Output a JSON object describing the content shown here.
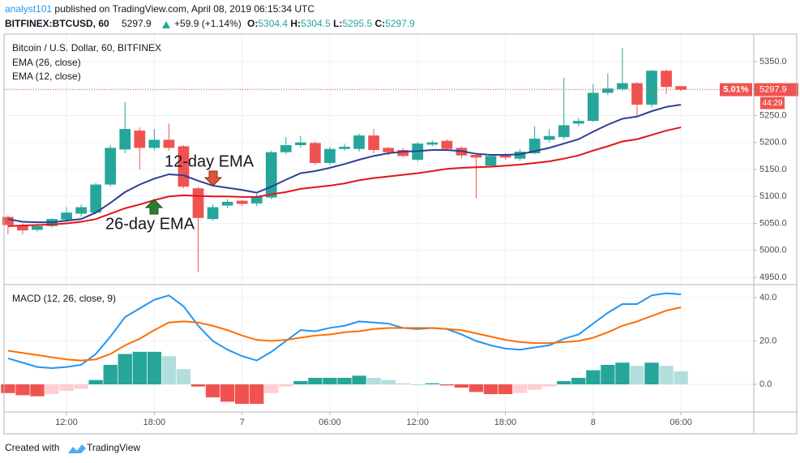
{
  "header": {
    "author": "analyst101",
    "published": "published on TradingView.com, April 08, 2019 06:15:34 UTC",
    "symbol": "BITFINEX:BTCUSD, 60",
    "price": "5297.9",
    "change": "+59.9 (+1.14%)",
    "o_label": "O:",
    "o_value": "5304.4",
    "h_label": "H:",
    "h_value": "5304.5",
    "l_label": "L:",
    "l_value": "5295.5",
    "c_label": "C:",
    "c_value": "5297.9"
  },
  "chart_data": [
    {
      "type": "candlestick",
      "title": "Bitcoin / U.S. Dollar, 60, BITFINEX",
      "x": [
        0,
        1,
        2,
        3,
        4,
        5,
        6,
        7,
        8,
        9,
        10,
        11,
        12,
        13,
        14,
        15,
        16,
        17,
        18,
        19,
        20,
        21,
        22,
        23,
        24,
        25,
        26,
        27,
        28,
        29,
        30,
        31,
        32,
        33,
        34,
        35,
        36,
        37,
        38,
        39,
        40,
        41,
        42,
        43,
        44,
        45,
        46
      ],
      "open": [
        5062,
        5047,
        5038,
        5045,
        5057,
        5068,
        5070,
        5122,
        5187,
        5222,
        5190,
        5205,
        5193,
        5115,
        5058,
        5083,
        5092,
        5087,
        5098,
        5182,
        5195,
        5199,
        5162,
        5188,
        5188,
        5213,
        5190,
        5186,
        5168,
        5196,
        5203,
        5190,
        5177,
        5157,
        5177,
        5170,
        5180,
        5205,
        5210,
        5235,
        5240,
        5292,
        5299,
        5310,
        5270,
        5333,
        5304.4
      ],
      "high": [
        5065,
        5050,
        5048,
        5060,
        5080,
        5085,
        5125,
        5195,
        5275,
        5228,
        5225,
        5235,
        5195,
        5118,
        5085,
        5095,
        5094,
        5105,
        5185,
        5210,
        5212,
        5202,
        5192,
        5198,
        5216,
        5225,
        5192,
        5190,
        5200,
        5204,
        5206,
        5193,
        5180,
        5178,
        5180,
        5188,
        5230,
        5225,
        5320,
        5245,
        5308,
        5328,
        5375,
        5312,
        5335,
        5335,
        5304.5
      ],
      "low": [
        5030,
        5030,
        5035,
        5042,
        5052,
        5062,
        5068,
        5118,
        5180,
        5150,
        5185,
        5185,
        5115,
        4960,
        5055,
        5078,
        5082,
        5082,
        5095,
        5178,
        5190,
        5158,
        5158,
        5185,
        5183,
        5180,
        5176,
        5172,
        5165,
        5193,
        5186,
        5170,
        5097,
        5154,
        5168,
        5166,
        5178,
        5200,
        5205,
        5230,
        5238,
        5288,
        5296,
        5250,
        5265,
        5290,
        5295.5
      ],
      "close": [
        5047,
        5037,
        5045,
        5058,
        5070,
        5080,
        5122,
        5190,
        5225,
        5190,
        5205,
        5190,
        5118,
        5060,
        5080,
        5090,
        5086,
        5100,
        5182,
        5195,
        5200,
        5162,
        5188,
        5192,
        5213,
        5186,
        5182,
        5175,
        5198,
        5200,
        5188,
        5176,
        5172,
        5175,
        5172,
        5183,
        5207,
        5212,
        5232,
        5240,
        5292,
        5300,
        5310,
        5270,
        5333,
        5303,
        5297.9
      ],
      "up_color": "#26a69a",
      "down_color": "#ef5350",
      "series": [
        {
          "name": "EMA (26, close)",
          "color": "#e3141b",
          "values": [
            5045,
            5046,
            5047,
            5048,
            5050,
            5053,
            5058,
            5068,
            5078,
            5085,
            5093,
            5100,
            5102,
            5101,
            5100,
            5100,
            5099,
            5099,
            5104,
            5108,
            5114,
            5117,
            5120,
            5124,
            5130,
            5134,
            5137,
            5140,
            5143,
            5147,
            5151,
            5153,
            5154,
            5155,
            5157,
            5159,
            5162,
            5165,
            5170,
            5176,
            5185,
            5193,
            5202,
            5206,
            5214,
            5222,
            5228
          ]
        },
        {
          "name": "EMA (12, close)",
          "color": "#2f3f95",
          "values": [
            5058,
            5053,
            5052,
            5052,
            5055,
            5058,
            5070,
            5088,
            5108,
            5122,
            5133,
            5141,
            5139,
            5129,
            5120,
            5116,
            5112,
            5107,
            5118,
            5131,
            5143,
            5147,
            5153,
            5160,
            5168,
            5175,
            5180,
            5183,
            5184,
            5186,
            5186,
            5184,
            5179,
            5177,
            5177,
            5178,
            5184,
            5190,
            5198,
            5206,
            5220,
            5233,
            5244,
            5248,
            5258,
            5266,
            5270
          ]
        }
      ],
      "annotations": [
        "12-day EMA",
        "26-day EMA"
      ],
      "last_change": "5.01%",
      "countdown": "44:29",
      "xlim": [
        -0.27,
        50.98
      ],
      "ylim": [
        4938,
        5401
      ],
      "yticks": [
        {
          "value": 4950,
          "label": "4950.0"
        },
        {
          "value": 5000,
          "label": "5000.0"
        },
        {
          "value": 5050,
          "label": "5050.0"
        },
        {
          "value": 5100,
          "label": "5100.0"
        },
        {
          "value": 5150,
          "label": "5150.0"
        },
        {
          "value": 5200,
          "label": "5200.0"
        },
        {
          "value": 5250,
          "label": "5250.0"
        },
        {
          "value": 5300,
          "label": "5300.0"
        },
        {
          "value": 5350,
          "label": "5350.0"
        }
      ],
      "grid": true
    },
    {
      "type": "macd",
      "title": "MACD (12, 26, close, 9)",
      "x": [
        0,
        1,
        2,
        3,
        4,
        5,
        6,
        7,
        8,
        9,
        10,
        11,
        12,
        13,
        14,
        15,
        16,
        17,
        18,
        19,
        20,
        21,
        22,
        23,
        24,
        25,
        26,
        27,
        28,
        29,
        30,
        31,
        32,
        33,
        34,
        35,
        36,
        37,
        38,
        39,
        40,
        41,
        42,
        43,
        44,
        45,
        46
      ],
      "histogram": [
        -4,
        -5,
        -5.5,
        -4.5,
        -3,
        -2,
        2,
        9,
        14,
        15,
        15,
        13,
        7,
        -1,
        -6,
        -8,
        -9,
        -9,
        -4,
        -1,
        1.5,
        3,
        3,
        3,
        4,
        3,
        2,
        0.5,
        0,
        0.5,
        -0.5,
        -1.5,
        -3.5,
        -4.5,
        -4.5,
        -4,
        -2.5,
        -1,
        1.5,
        3,
        6.5,
        9,
        10,
        8.5,
        10,
        8.5,
        6
      ],
      "histogram_colors": [
        "#26a69a",
        "#b2dfdb",
        "#ef5350",
        "#ffcdd2"
      ],
      "series": [
        {
          "color": "#2196f3",
          "values": [
            12,
            10,
            8,
            7.5,
            8,
            9,
            14,
            22,
            31,
            35,
            39,
            41,
            36,
            27,
            20,
            16,
            13,
            11,
            15,
            20,
            25,
            24.5,
            26,
            27,
            29,
            28.5,
            28,
            26,
            25.5,
            26,
            25.5,
            23,
            20,
            18,
            16.5,
            16,
            17,
            18,
            21,
            23,
            28,
            33,
            37,
            37,
            41,
            42,
            41.5
          ]
        },
        {
          "color": "#ff6d00",
          "values": [
            15.5,
            14.5,
            13.5,
            12.5,
            11.5,
            11,
            11.5,
            14,
            18,
            21,
            25,
            28.5,
            29,
            28.5,
            27,
            25,
            22.5,
            20.5,
            20,
            20.5,
            21.5,
            22.5,
            23,
            24,
            24.5,
            25.5,
            26,
            26,
            26,
            26,
            25.5,
            25,
            23.5,
            22,
            20.5,
            19.5,
            19,
            19,
            19.5,
            20,
            21.5,
            24,
            27,
            29,
            31.5,
            34,
            35.5
          ]
        }
      ],
      "xlim": [
        -0.27,
        50.98
      ],
      "ylim": [
        -12.7,
        45.6
      ],
      "yticks": [
        {
          "value": 0,
          "label": "0.0"
        },
        {
          "value": 20,
          "label": "20.0"
        },
        {
          "value": 40,
          "label": "40.0"
        }
      ],
      "xticks": [
        {
          "value": 4,
          "label": "12:00"
        },
        {
          "value": 10,
          "label": "18:00"
        },
        {
          "value": 16,
          "label": "7"
        },
        {
          "value": 22,
          "label": "06:00"
        },
        {
          "value": 28,
          "label": "12:00"
        },
        {
          "value": 34,
          "label": "18:00"
        },
        {
          "value": 40,
          "label": "8"
        },
        {
          "value": 46,
          "label": "06:00"
        }
      ],
      "grid": true
    }
  ],
  "footer": {
    "created": "Created with",
    "brand": "TradingView"
  }
}
